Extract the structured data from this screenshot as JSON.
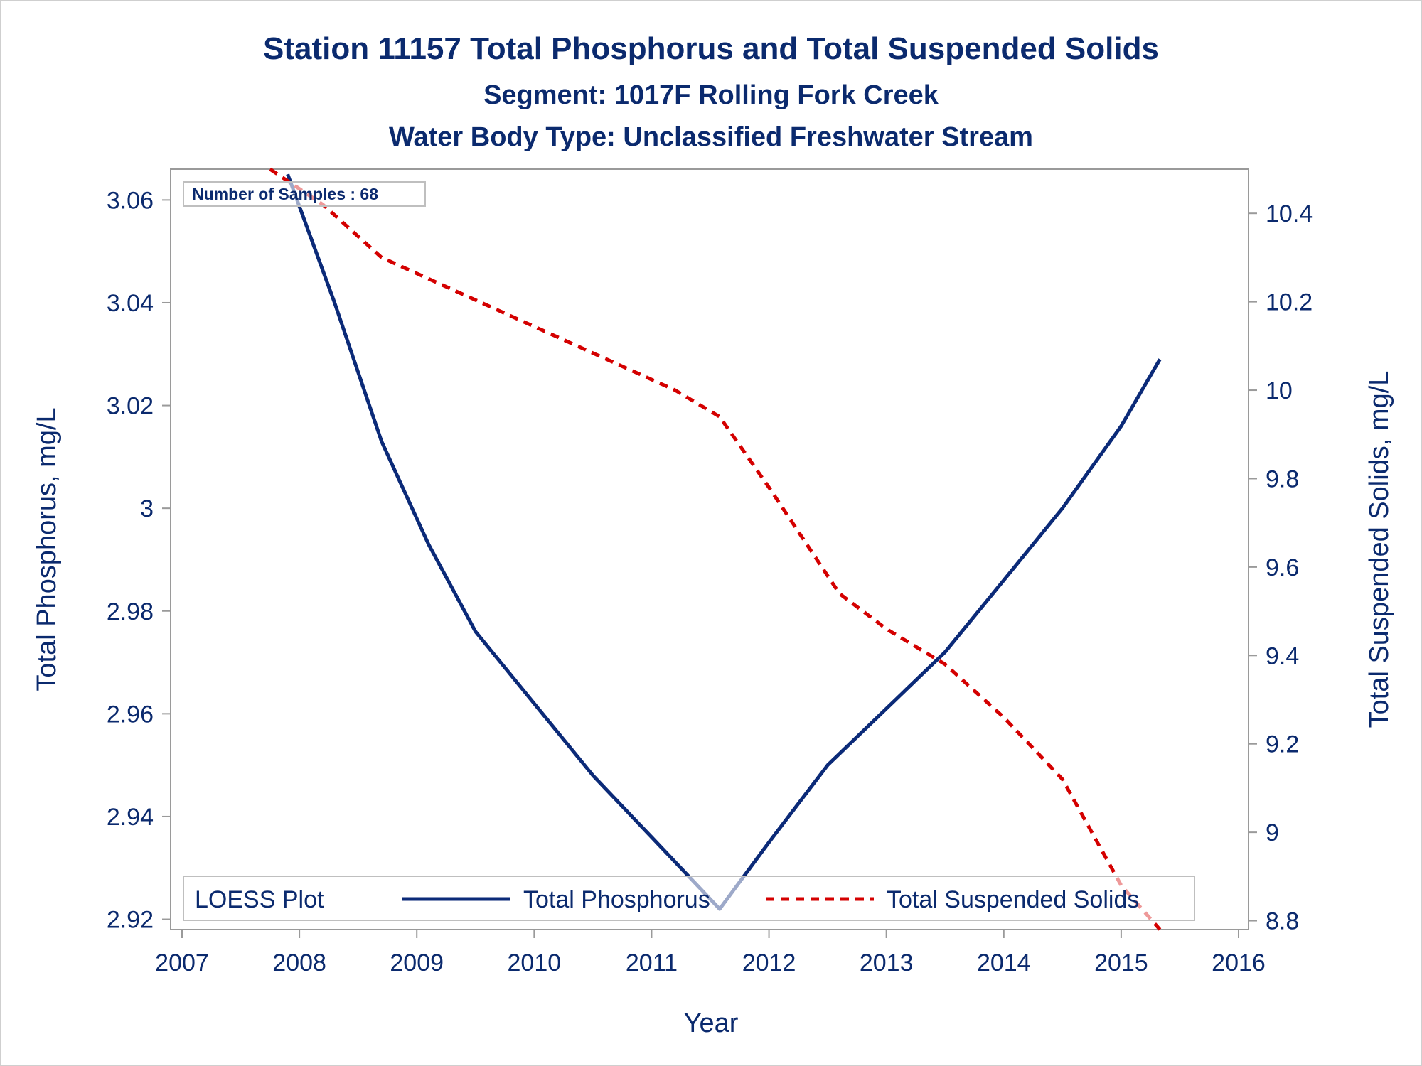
{
  "chart_data": {
    "type": "line",
    "title": "Station 11157  Total Phosphorus and Total Suspended Solids",
    "subtitle": "Segment: 1017F  Rolling Fork Creek",
    "subtitle2": "Water Body Type: Unclassified Freshwater Stream",
    "xlabel": "Year",
    "ylabel_left": "Total Phosphorus, mg/L",
    "ylabel_right": "Total Suspended Solids, mg/L",
    "xlim": [
      2007,
      2016
    ],
    "ylim_left": [
      2.918,
      3.066
    ],
    "ylim_right": [
      8.78,
      10.5
    ],
    "x_ticks": [
      "2007",
      "2008",
      "2009",
      "2010",
      "2011",
      "2012",
      "2013",
      "2014",
      "2015",
      "2016"
    ],
    "y_ticks_left": [
      "2.92",
      "2.94",
      "2.96",
      "2.98",
      "3",
      "3.02",
      "3.04",
      "3.06"
    ],
    "y_ticks_right": [
      "8.8",
      "9",
      "9.2",
      "9.4",
      "9.6",
      "9.8",
      "10",
      "10.2",
      "10.4"
    ],
    "grid": false,
    "annotation": "Number of Samples : 68",
    "legend": {
      "title": "LOESS Plot",
      "placement": "bottom-inside",
      "entries": [
        "Total Phosphorus",
        "Total Suspended Solids"
      ]
    },
    "series": [
      {
        "name": "Total Phosphorus",
        "axis": "left",
        "color": "#0b2a78",
        "style": "solid",
        "x": [
          2007.9,
          2008.3,
          2008.7,
          2009.1,
          2009.5,
          2010.0,
          2010.5,
          2011.0,
          2011.58,
          2012.0,
          2012.5,
          2013.0,
          2013.5,
          2014.0,
          2014.5,
          2015.0,
          2015.33
        ],
        "y": [
          3.065,
          3.04,
          3.013,
          2.993,
          2.976,
          2.962,
          2.948,
          2.936,
          2.922,
          2.935,
          2.95,
          2.961,
          2.972,
          2.986,
          3.0,
          3.016,
          3.029
        ]
      },
      {
        "name": "Total Suspended Solids",
        "axis": "right",
        "color": "#d40000",
        "style": "dashed",
        "x": [
          2007.75,
          2008.2,
          2008.7,
          2009.2,
          2009.7,
          2010.2,
          2010.7,
          2011.2,
          2011.58,
          2012.0,
          2012.6,
          2013.0,
          2013.5,
          2014.0,
          2014.5,
          2015.0,
          2015.33
        ],
        "y": [
          10.5,
          10.42,
          10.3,
          10.24,
          10.18,
          10.12,
          10.06,
          10.0,
          9.94,
          9.78,
          9.54,
          9.46,
          9.38,
          9.26,
          9.12,
          8.88,
          8.78
        ]
      }
    ]
  }
}
